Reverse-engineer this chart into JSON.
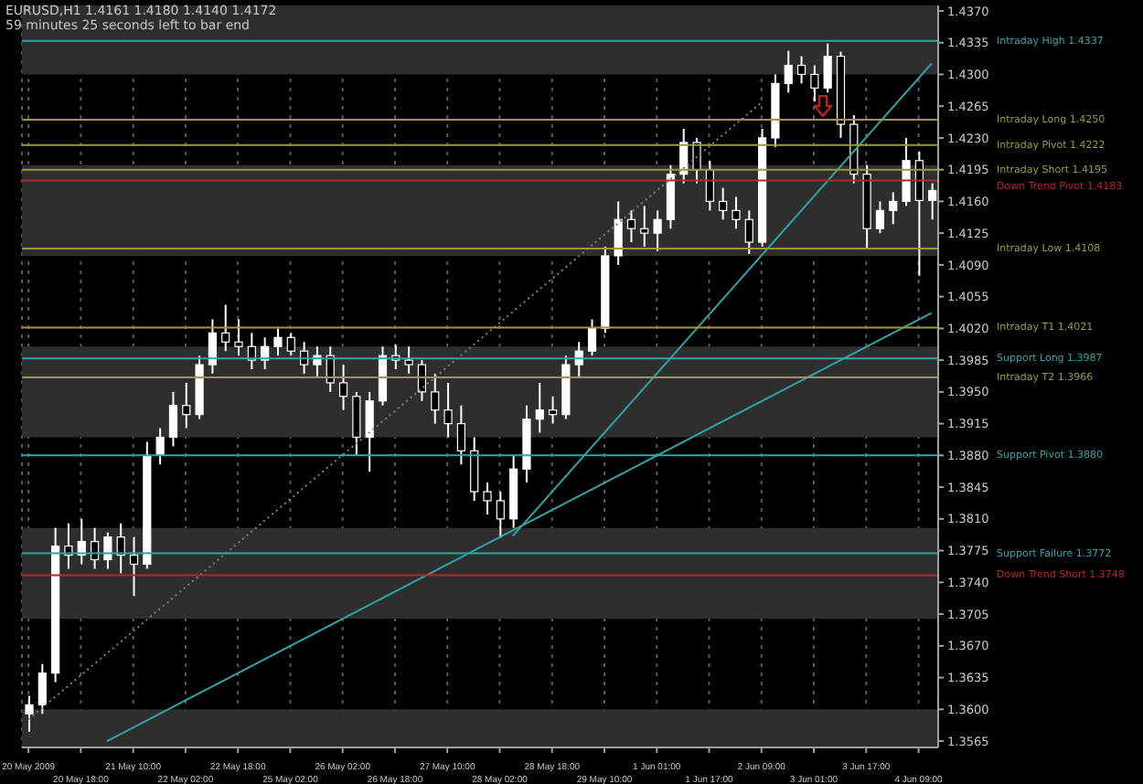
{
  "chart_data": {
    "type": "candlestick",
    "title": "EURUSD,H1  1.4161 1.4180 1.4140 1.4172",
    "subtitle": "59 minutes 25 seconds left to bar end",
    "color": "#ffffff",
    "categories": [
      "20 May 2009",
      null,
      null,
      null,
      "20 May 18:00",
      null,
      null,
      null,
      "21 May 10:00",
      null,
      null,
      null,
      "22 May 02:00",
      null,
      null,
      null,
      "22 May 18:00",
      null,
      null,
      null,
      "25 May 02:00",
      null,
      null,
      null,
      "26 May 02:00",
      null,
      null,
      null,
      "26 May 18:00",
      null,
      null,
      null,
      "27 May 10:00",
      null,
      null,
      null,
      "28 May 02:00",
      null,
      null,
      null,
      "28 May 18:00",
      null,
      null,
      null,
      "29 May 10:00",
      null,
      null,
      null,
      "1 Jun 01:00",
      null,
      null,
      null,
      "1 Jun 17:00",
      null,
      null,
      null,
      "2 Jun 09:00",
      null,
      null,
      null,
      "3 Jun 01:00",
      null,
      null,
      null,
      "3 Jun 17:00",
      null,
      null,
      null,
      "4 Jun 09:00",
      null
    ],
    "ohlc": [
      [
        1.3595,
        1.3615,
        1.3575,
        1.3605
      ],
      [
        1.3605,
        1.365,
        1.3595,
        1.364
      ],
      [
        1.364,
        1.38,
        1.363,
        1.378
      ],
      [
        1.378,
        1.3805,
        1.3755,
        1.377
      ],
      [
        1.377,
        1.381,
        1.376,
        1.3785
      ],
      [
        1.3785,
        1.38,
        1.3755,
        1.3765
      ],
      [
        1.3765,
        1.3795,
        1.3755,
        1.379
      ],
      [
        1.379,
        1.3805,
        1.375,
        1.377
      ],
      [
        1.377,
        1.379,
        1.3725,
        1.376
      ],
      [
        1.376,
        1.3895,
        1.3755,
        1.388
      ],
      [
        1.388,
        1.391,
        1.387,
        1.39
      ],
      [
        1.39,
        1.395,
        1.389,
        1.3935
      ],
      [
        1.3935,
        1.396,
        1.391,
        1.3925
      ],
      [
        1.3925,
        1.399,
        1.392,
        1.398
      ],
      [
        1.398,
        1.403,
        1.397,
        1.4015
      ],
      [
        1.4015,
        1.4046,
        1.3995,
        1.4005
      ],
      [
        1.4005,
        1.403,
        1.399,
        1.4
      ],
      [
        1.4,
        1.4015,
        1.3975,
        1.3985
      ],
      [
        1.3985,
        1.401,
        1.3975,
        1.4
      ],
      [
        1.4,
        1.402,
        1.399,
        1.401
      ],
      [
        1.401,
        1.4015,
        1.399,
        1.3995
      ],
      [
        1.3995,
        1.4005,
        1.397,
        1.398
      ],
      [
        1.398,
        1.4,
        1.3965,
        1.399
      ],
      [
        1.399,
        1.4,
        1.395,
        1.396
      ],
      [
        1.396,
        1.398,
        1.393,
        1.3945
      ],
      [
        1.3945,
        1.395,
        1.388,
        1.39
      ],
      [
        1.39,
        1.395,
        1.3862,
        1.394
      ],
      [
        1.394,
        1.4,
        1.3935,
        1.399
      ],
      [
        1.399,
        1.4002,
        1.3975,
        1.3985
      ],
      [
        1.3985,
        1.4,
        1.397,
        1.398
      ],
      [
        1.398,
        1.3985,
        1.394,
        1.395
      ],
      [
        1.395,
        1.397,
        1.3915,
        1.393
      ],
      [
        1.393,
        1.396,
        1.39,
        1.3915
      ],
      [
        1.3915,
        1.3935,
        1.387,
        1.3885
      ],
      [
        1.3885,
        1.39,
        1.383,
        1.384
      ],
      [
        1.384,
        1.385,
        1.3815,
        1.383
      ],
      [
        1.383,
        1.384,
        1.3789,
        1.381
      ],
      [
        1.381,
        1.388,
        1.38,
        1.3865
      ],
      [
        1.3865,
        1.3935,
        1.385,
        1.392
      ],
      [
        1.392,
        1.396,
        1.3905,
        1.393
      ],
      [
        1.393,
        1.3945,
        1.3915,
        1.3925
      ],
      [
        1.3925,
        1.399,
        1.392,
        1.398
      ],
      [
        1.398,
        1.4005,
        1.3965,
        1.3995
      ],
      [
        1.3995,
        1.403,
        1.399,
        1.402
      ],
      [
        1.402,
        1.411,
        1.4015,
        1.41
      ],
      [
        1.41,
        1.416,
        1.409,
        1.414
      ],
      [
        1.414,
        1.415,
        1.4115,
        1.413
      ],
      [
        1.413,
        1.4155,
        1.411,
        1.4125
      ],
      [
        1.4125,
        1.415,
        1.4105,
        1.414
      ],
      [
        1.414,
        1.42,
        1.413,
        1.419
      ],
      [
        1.419,
        1.424,
        1.418,
        1.4225
      ],
      [
        1.4225,
        1.423,
        1.418,
        1.4195
      ],
      [
        1.4195,
        1.4205,
        1.415,
        1.416
      ],
      [
        1.416,
        1.4175,
        1.414,
        1.415
      ],
      [
        1.415,
        1.4165,
        1.413,
        1.414
      ],
      [
        1.414,
        1.415,
        1.4102,
        1.4115
      ],
      [
        1.4115,
        1.424,
        1.411,
        1.423
      ],
      [
        1.423,
        1.43,
        1.422,
        1.429
      ],
      [
        1.429,
        1.4326,
        1.428,
        1.431
      ],
      [
        1.431,
        1.432,
        1.429,
        1.43
      ],
      [
        1.43,
        1.431,
        1.427,
        1.4285
      ],
      [
        1.4285,
        1.4334,
        1.428,
        1.432
      ],
      [
        1.432,
        1.4325,
        1.423,
        1.4245
      ],
      [
        1.4245,
        1.4255,
        1.418,
        1.419
      ],
      [
        1.419,
        1.42,
        1.4108,
        1.413
      ],
      [
        1.413,
        1.416,
        1.4125,
        1.415
      ],
      [
        1.415,
        1.417,
        1.4135,
        1.416
      ],
      [
        1.416,
        1.423,
        1.4155,
        1.4205
      ],
      [
        1.4205,
        1.4215,
        1.4078,
        1.4161
      ],
      [
        1.4161,
        1.418,
        1.414,
        1.4172
      ]
    ],
    "series": [
      {
        "type": "line",
        "color": "#2fa6a6",
        "values": [
          null,
          null,
          null,
          null,
          null,
          null,
          1.3565,
          null,
          null,
          null,
          null,
          null,
          null,
          null,
          null,
          null,
          null,
          null,
          null,
          null,
          null,
          null,
          null,
          null,
          null,
          null,
          null,
          null,
          null,
          null,
          null,
          null,
          null,
          null,
          null,
          null,
          null,
          null,
          null,
          null,
          null,
          null,
          null,
          null,
          null,
          null,
          null,
          null,
          null,
          null,
          null,
          null,
          null,
          null,
          null,
          null,
          null,
          null,
          null,
          null,
          null,
          null,
          null,
          null,
          null,
          null,
          null,
          null,
          null,
          1.4037
        ]
      },
      {
        "type": "line",
        "color": "#2fa6a6",
        "values": [
          null,
          null,
          null,
          null,
          null,
          null,
          null,
          null,
          null,
          null,
          null,
          null,
          null,
          null,
          null,
          null,
          null,
          null,
          null,
          null,
          null,
          null,
          null,
          null,
          null,
          null,
          null,
          null,
          null,
          null,
          null,
          null,
          null,
          null,
          null,
          null,
          null,
          1.3791,
          null,
          null,
          null,
          null,
          null,
          null,
          null,
          null,
          null,
          null,
          null,
          null,
          null,
          null,
          null,
          null,
          null,
          null,
          null,
          null,
          null,
          null,
          null,
          null,
          null,
          null,
          null,
          null,
          null,
          null,
          null,
          1.4312
        ]
      },
      {
        "type": "line",
        "color": "#808080",
        "line_style": "dotted",
        "values": [
          1.3589,
          null,
          null,
          null,
          null,
          null,
          null,
          null,
          null,
          null,
          null,
          null,
          null,
          null,
          null,
          null,
          null,
          null,
          null,
          null,
          null,
          null,
          null,
          null,
          null,
          null,
          null,
          null,
          null,
          null,
          null,
          null,
          null,
          null,
          null,
          null,
          null,
          null,
          null,
          null,
          null,
          null,
          null,
          null,
          null,
          null,
          null,
          null,
          null,
          null,
          null,
          null,
          null,
          null,
          null,
          null,
          1.4269,
          null,
          null,
          null,
          null,
          null,
          null,
          null,
          null,
          null,
          null,
          null,
          null,
          null
        ]
      }
    ],
    "ylim": [
      1.3558,
      1.4376
    ],
    "yticks": [
      {
        "value": 1.3565,
        "label": "1.3565"
      },
      {
        "value": 1.36,
        "label": "1.3600"
      },
      {
        "value": 1.3635,
        "label": "1.3635"
      },
      {
        "value": 1.367,
        "label": "1.3670"
      },
      {
        "value": 1.3705,
        "label": "1.3705"
      },
      {
        "value": 1.374,
        "label": "1.3740"
      },
      {
        "value": 1.3775,
        "label": "1.3775"
      },
      {
        "value": 1.381,
        "label": "1.3810"
      },
      {
        "value": 1.3845,
        "label": "1.3845"
      },
      {
        "value": 1.388,
        "label": "1.3880"
      },
      {
        "value": 1.3915,
        "label": "1.3915"
      },
      {
        "value": 1.395,
        "label": "1.3950"
      },
      {
        "value": 1.3985,
        "label": "1.3985"
      },
      {
        "value": 1.402,
        "label": "1.4020"
      },
      {
        "value": 1.4055,
        "label": "1.4055"
      },
      {
        "value": 1.409,
        "label": "1.4090"
      },
      {
        "value": 1.4125,
        "label": "1.4125"
      },
      {
        "value": 1.416,
        "label": "1.4160"
      },
      {
        "value": 1.4195,
        "label": "1.4195"
      },
      {
        "value": 1.423,
        "label": "1.4230"
      },
      {
        "value": 1.4265,
        "label": "1.4265"
      },
      {
        "value": 1.43,
        "label": "1.4300"
      },
      {
        "value": 1.4335,
        "label": "1.4335"
      },
      {
        "value": 1.437,
        "label": "1.4370"
      }
    ],
    "grid": "x",
    "bands": [
      {
        "axis": "y",
        "from": 1.43,
        "to": 1.4376,
        "color": "#2e2e2e"
      },
      {
        "axis": "y",
        "from": 1.41,
        "to": 1.42,
        "color": "#2e2e2e"
      },
      {
        "axis": "y",
        "from": 1.39,
        "to": 1.4,
        "color": "#2e2e2e"
      },
      {
        "axis": "y",
        "from": 1.37,
        "to": 1.38,
        "color": "#2e2e2e"
      },
      {
        "axis": "y",
        "from": 1.3558,
        "to": 1.36,
        "color": "#2e2e2e"
      }
    ],
    "ref_lines": [
      {
        "axis": "y",
        "value": 1.4337,
        "label": "Intraday High   1.4337",
        "color": "#2fa6a6"
      },
      {
        "axis": "y",
        "value": 1.425,
        "label": "Intraday Long   1.4250",
        "color": "#9b9b30"
      },
      {
        "axis": "y",
        "value": 1.4222,
        "label": "Intraday Pivot   1.4222",
        "color": "#9b9b30"
      },
      {
        "axis": "y",
        "value": 1.4195,
        "label": "Intraday Short   1.4195",
        "color": "#9b9b30"
      },
      {
        "axis": "y",
        "value": 1.4183,
        "label": "Down Trend Pivot 1.4183",
        "color": "#b02828"
      },
      {
        "axis": "y",
        "value": 1.4108,
        "label": "Intraday Low   1.4108",
        "color": "#9b9b30"
      },
      {
        "axis": "y",
        "value": 1.4021,
        "label": "Intraday   T1   1.4021",
        "color": "#9b9b30"
      },
      {
        "axis": "y",
        "value": 1.3987,
        "label": "Support Long   1.3987",
        "color": "#2fa6a6"
      },
      {
        "axis": "y",
        "value": 1.3966,
        "label": "Intraday   T2   1.3966",
        "color": "#9b9b30"
      },
      {
        "axis": "y",
        "value": 1.388,
        "label": "Support Pivot   1.3880",
        "color": "#2fa6a6"
      },
      {
        "axis": "y",
        "value": 1.3772,
        "label": "Support Failure   1.3772",
        "color": "#2fa6a6"
      },
      {
        "axis": "y",
        "value": 1.3748,
        "label": "Down Trend Short 1.3748",
        "color": "#b02828"
      }
    ]
  }
}
